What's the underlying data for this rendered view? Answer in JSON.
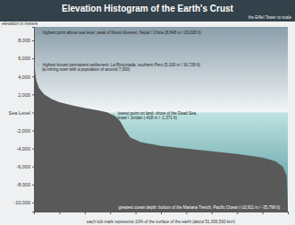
{
  "chart_data": {
    "type": "area",
    "title": "Elevation Histogram of the Earth's Crust",
    "subtitle": "the Eiffel Tower to scale",
    "ylabel": "elevation in meters",
    "xlabel": "each tick-mark represents 10% of the surface of the earth (about 51,006,560 km²)",
    "x": [
      0,
      0.1,
      0.3,
      0.6,
      1,
      2,
      4,
      7,
      10,
      15,
      20,
      25,
      28,
      29,
      30,
      32,
      34,
      36,
      38,
      42,
      50,
      60,
      70,
      80,
      90,
      95,
      98,
      99.5,
      100
    ],
    "values": [
      8848,
      6000,
      5100,
      4200,
      3500,
      2700,
      2000,
      1500,
      1150,
      800,
      500,
      250,
      80,
      0,
      -150,
      -400,
      -1000,
      -2000,
      -2800,
      -3300,
      -3700,
      -4000,
      -4300,
      -4600,
      -5000,
      -5400,
      -6000,
      -7000,
      -10911
    ],
    "color": "#595959",
    "xlim": [
      0,
      100
    ],
    "ylim": [
      -11000,
      9500
    ],
    "xticks": [
      0,
      10,
      20,
      30,
      40,
      50,
      60,
      70,
      80,
      90,
      100
    ],
    "yticks": [
      {
        "value": 8000,
        "label": "8,000"
      },
      {
        "value": 6000,
        "label": "6,000"
      },
      {
        "value": 4000,
        "label": "4,000"
      },
      {
        "value": 2000,
        "label": "2,000"
      },
      {
        "value": 0,
        "label": "Sea Level"
      },
      {
        "value": -2000,
        "label": "-2,000"
      },
      {
        "value": -4000,
        "label": "-4,000"
      },
      {
        "value": -6000,
        "label": "-6,000"
      },
      {
        "value": -8000,
        "label": "-8,000"
      },
      {
        "value": -10000,
        "label": "-10,000"
      }
    ],
    "tick_labels": "y",
    "annotations": [
      [
        "← highest point above sea level: peak of Mount Everest, Nepal / China (8,848 m / 29,028 ft)"
      ],
      [
        "← highest known permanent settlement: La Rinconada, southern Peru (5,100 m / 16,728 ft)",
        "(a mining town with a population of around 7,000)"
      ],
      [
        "← lowest point on land: shore of the Dead Sea,",
        "Israel / Jordan (-418 m / -1,371 ft)"
      ],
      [
        "greatest ocean depth: bottom of the Mariana Trench, Pacific Ocean (-10,911 m / -35,799 ft) →"
      ]
    ]
  }
}
